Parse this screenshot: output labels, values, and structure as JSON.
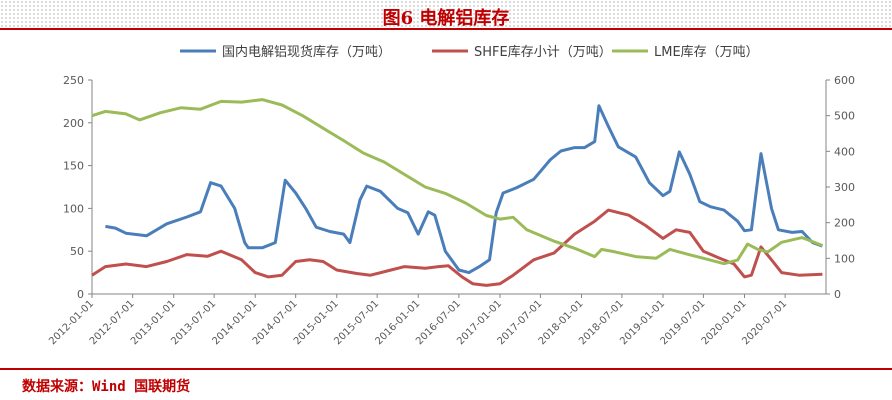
{
  "header": {
    "title": "图6 电解铝库存"
  },
  "footer": {
    "source": "数据来源：Wind   国联期货"
  },
  "colors": {
    "accent": "#c00000",
    "series1": "#4a7ebb",
    "series2": "#c0504d",
    "series3": "#9bbb59"
  },
  "chart_data": {
    "type": "line",
    "legend_position": "top",
    "grid": false,
    "xlim": [
      "2012-01-01",
      "2020-12-31"
    ],
    "x_ticks": [
      "2012-01-01",
      "2012-07-01",
      "2013-01-01",
      "2013-07-01",
      "2014-01-01",
      "2014-07-01",
      "2015-01-01",
      "2015-07-01",
      "2016-01-01",
      "2016-07-01",
      "2017-01-01",
      "2017-07-01",
      "2018-01-01",
      "2018-07-01",
      "2019-01-01",
      "2019-07-01",
      "2020-01-01",
      "2020-07-01"
    ],
    "y_left": {
      "ylim": [
        0,
        250
      ],
      "ticks": [
        "0",
        "50",
        "100",
        "150",
        "200",
        "250"
      ]
    },
    "y_right": {
      "ylim": [
        0,
        600
      ],
      "ticks": [
        "0",
        "100",
        "200",
        "300",
        "400",
        "500",
        "600"
      ]
    },
    "series": [
      {
        "name": "国内电解铝现货库存（万吨）",
        "axis": "left",
        "points": [
          [
            "2012-03-01",
            79
          ],
          [
            "2012-04-15",
            77
          ],
          [
            "2012-06-01",
            71
          ],
          [
            "2012-09-01",
            68
          ],
          [
            "2012-12-01",
            82
          ],
          [
            "2013-03-01",
            90
          ],
          [
            "2013-05-01",
            96
          ],
          [
            "2013-06-15",
            130
          ],
          [
            "2013-08-01",
            126
          ],
          [
            "2013-10-01",
            100
          ],
          [
            "2013-11-15",
            60
          ],
          [
            "2013-12-01",
            54
          ],
          [
            "2014-02-01",
            54
          ],
          [
            "2014-04-01",
            60
          ],
          [
            "2014-05-15",
            133
          ],
          [
            "2014-07-01",
            118
          ],
          [
            "2014-08-15",
            100
          ],
          [
            "2014-10-01",
            78
          ],
          [
            "2014-12-01",
            73
          ],
          [
            "2015-02-01",
            70
          ],
          [
            "2015-03-01",
            60
          ],
          [
            "2015-04-15",
            110
          ],
          [
            "2015-05-15",
            126
          ],
          [
            "2015-07-15",
            120
          ],
          [
            "2015-10-01",
            100
          ],
          [
            "2015-11-15",
            95
          ],
          [
            "2016-01-01",
            70
          ],
          [
            "2016-02-15",
            96
          ],
          [
            "2016-03-15",
            92
          ],
          [
            "2016-05-01",
            50
          ],
          [
            "2016-07-01",
            28
          ],
          [
            "2016-08-15",
            25
          ],
          [
            "2016-10-01",
            32
          ],
          [
            "2016-11-15",
            40
          ],
          [
            "2016-12-15",
            95
          ],
          [
            "2017-01-15",
            118
          ],
          [
            "2017-03-15",
            124
          ],
          [
            "2017-06-01",
            134
          ],
          [
            "2017-08-15",
            157
          ],
          [
            "2017-10-01",
            167
          ],
          [
            "2017-12-01",
            171
          ],
          [
            "2018-01-15",
            171
          ],
          [
            "2018-03-01",
            178
          ],
          [
            "2018-03-20",
            220
          ],
          [
            "2018-05-01",
            196
          ],
          [
            "2018-06-15",
            172
          ],
          [
            "2018-09-01",
            160
          ],
          [
            "2018-11-01",
            130
          ],
          [
            "2019-01-01",
            115
          ],
          [
            "2019-02-01",
            120
          ],
          [
            "2019-03-15",
            166
          ],
          [
            "2019-05-01",
            140
          ],
          [
            "2019-06-15",
            108
          ],
          [
            "2019-08-01",
            102
          ],
          [
            "2019-10-01",
            98
          ],
          [
            "2019-12-01",
            85
          ],
          [
            "2020-01-01",
            74
          ],
          [
            "2020-02-01",
            75
          ],
          [
            "2020-03-15",
            164
          ],
          [
            "2020-05-01",
            100
          ],
          [
            "2020-06-01",
            75
          ],
          [
            "2020-08-01",
            72
          ],
          [
            "2020-09-15",
            73
          ],
          [
            "2020-11-01",
            60
          ],
          [
            "2020-12-15",
            56
          ]
        ]
      },
      {
        "name": "SHFE库存小计（万吨）",
        "axis": "left",
        "points": [
          [
            "2012-01-01",
            22
          ],
          [
            "2012-03-01",
            32
          ],
          [
            "2012-06-01",
            35
          ],
          [
            "2012-09-01",
            32
          ],
          [
            "2012-12-01",
            38
          ],
          [
            "2013-03-01",
            46
          ],
          [
            "2013-06-01",
            44
          ],
          [
            "2013-08-01",
            50
          ],
          [
            "2013-11-01",
            40
          ],
          [
            "2014-01-01",
            25
          ],
          [
            "2014-03-01",
            20
          ],
          [
            "2014-05-01",
            22
          ],
          [
            "2014-07-01",
            38
          ],
          [
            "2014-09-01",
            40
          ],
          [
            "2014-11-01",
            38
          ],
          [
            "2015-01-01",
            28
          ],
          [
            "2015-04-01",
            24
          ],
          [
            "2015-06-01",
            22
          ],
          [
            "2015-09-01",
            28
          ],
          [
            "2015-11-01",
            32
          ],
          [
            "2016-02-01",
            30
          ],
          [
            "2016-04-01",
            32
          ],
          [
            "2016-05-15",
            33
          ],
          [
            "2016-07-15",
            20
          ],
          [
            "2016-09-01",
            12
          ],
          [
            "2016-11-01",
            10
          ],
          [
            "2017-01-01",
            12
          ],
          [
            "2017-03-01",
            22
          ],
          [
            "2017-06-01",
            40
          ],
          [
            "2017-09-01",
            48
          ],
          [
            "2017-12-01",
            70
          ],
          [
            "2018-03-01",
            85
          ],
          [
            "2018-05-01",
            98
          ],
          [
            "2018-08-01",
            92
          ],
          [
            "2018-10-15",
            80
          ],
          [
            "2019-01-01",
            65
          ],
          [
            "2019-03-01",
            75
          ],
          [
            "2019-05-01",
            72
          ],
          [
            "2019-07-01",
            50
          ],
          [
            "2019-09-01",
            43
          ],
          [
            "2019-11-15",
            35
          ],
          [
            "2020-01-01",
            20
          ],
          [
            "2020-02-01",
            22
          ],
          [
            "2020-03-15",
            55
          ],
          [
            "2020-05-01",
            40
          ],
          [
            "2020-06-15",
            25
          ],
          [
            "2020-09-01",
            22
          ],
          [
            "2020-12-15",
            23
          ]
        ]
      },
      {
        "name": "LME库存（万吨）",
        "axis": "right",
        "points": [
          [
            "2012-01-01",
            500
          ],
          [
            "2012-03-01",
            512
          ],
          [
            "2012-06-01",
            505
          ],
          [
            "2012-08-01",
            488
          ],
          [
            "2012-11-01",
            508
          ],
          [
            "2013-02-01",
            522
          ],
          [
            "2013-05-01",
            518
          ],
          [
            "2013-08-01",
            540
          ],
          [
            "2013-11-01",
            538
          ],
          [
            "2014-02-01",
            545
          ],
          [
            "2014-05-01",
            530
          ],
          [
            "2014-08-01",
            500
          ],
          [
            "2014-11-01",
            465
          ],
          [
            "2015-02-01",
            430
          ],
          [
            "2015-05-01",
            395
          ],
          [
            "2015-08-01",
            370
          ],
          [
            "2015-11-01",
            335
          ],
          [
            "2016-02-01",
            300
          ],
          [
            "2016-05-01",
            282
          ],
          [
            "2016-08-01",
            255
          ],
          [
            "2016-11-01",
            220
          ],
          [
            "2017-01-01",
            210
          ],
          [
            "2017-03-01",
            215
          ],
          [
            "2017-05-01",
            180
          ],
          [
            "2017-09-01",
            148
          ],
          [
            "2017-12-01",
            128
          ],
          [
            "2018-03-01",
            105
          ],
          [
            "2018-04-01",
            125
          ],
          [
            "2018-06-01",
            118
          ],
          [
            "2018-09-01",
            105
          ],
          [
            "2018-12-01",
            100
          ],
          [
            "2019-02-01",
            125
          ],
          [
            "2019-05-01",
            110
          ],
          [
            "2019-08-01",
            95
          ],
          [
            "2019-10-01",
            85
          ],
          [
            "2019-12-01",
            95
          ],
          [
            "2020-01-15",
            140
          ],
          [
            "2020-03-01",
            125
          ],
          [
            "2020-04-15",
            118
          ],
          [
            "2020-06-15",
            145
          ],
          [
            "2020-09-15",
            158
          ],
          [
            "2020-12-15",
            136
          ]
        ]
      }
    ]
  }
}
